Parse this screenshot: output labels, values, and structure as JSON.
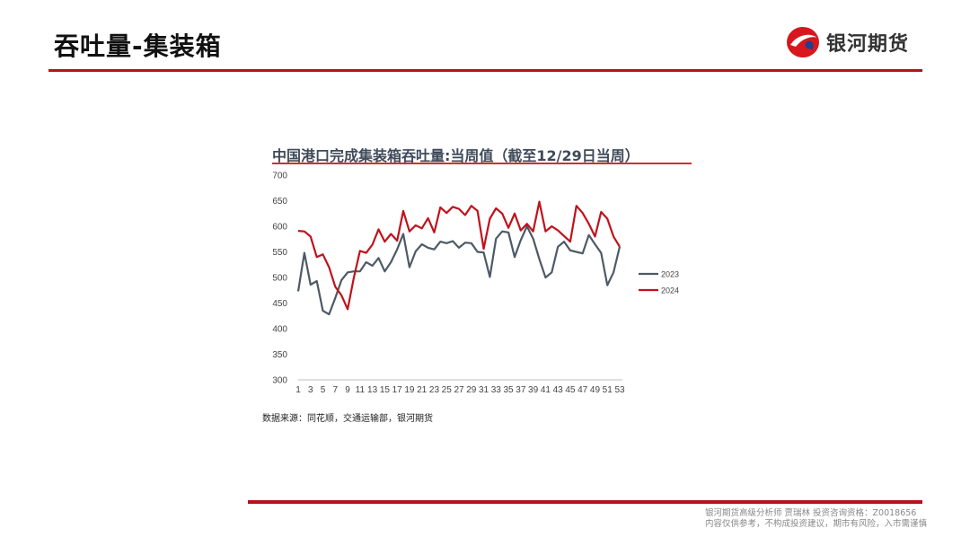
{
  "header": {
    "title": "吞吐量-集装箱",
    "logo_text": "银河期货",
    "logo_colors": {
      "red": "#d7161e",
      "blue": "#1f3f8f"
    }
  },
  "chart_title": "中国港口完成集装箱吞吐量:当周值（截至12/29日当周）",
  "source": "数据来源：同花顺，交通运输部，银河期货",
  "footer": {
    "line1": "银河期货高级分析师 贾瑞林 投资咨询资格：Z0018656",
    "line2": "内容仅供参考，不构成投资建议，期市有风险，入市需谨慎"
  },
  "chart_data": {
    "type": "line",
    "title": "中国港口完成集装箱吞吐量:当周值（截至12/29日当周）",
    "xlabel": "",
    "ylabel": "",
    "ylim": [
      300,
      700
    ],
    "yticks": [
      300,
      350,
      400,
      450,
      500,
      550,
      600,
      650,
      700
    ],
    "xticks": [
      "1",
      "3",
      "5",
      "7",
      "9",
      "11",
      "13",
      "15",
      "17",
      "19",
      "21",
      "23",
      "25",
      "27",
      "29",
      "31",
      "33",
      "35",
      "37",
      "39",
      "41",
      "43",
      "45",
      "47",
      "49",
      "51",
      "53"
    ],
    "x": [
      1,
      2,
      3,
      4,
      5,
      6,
      7,
      8,
      9,
      10,
      11,
      12,
      13,
      14,
      15,
      16,
      17,
      18,
      19,
      20,
      21,
      22,
      23,
      24,
      25,
      26,
      27,
      28,
      29,
      30,
      31,
      32,
      33,
      34,
      35,
      36,
      37,
      38,
      39,
      40,
      41,
      42,
      43,
      44,
      45,
      46,
      47,
      48,
      49,
      50,
      51,
      52,
      53
    ],
    "grid": false,
    "legend": "right",
    "series": [
      {
        "name": "2023",
        "color": "#4d5a66",
        "values": [
          473,
          548,
          486,
          493,
          435,
          428,
          460,
          495,
          510,
          512,
          512,
          530,
          523,
          538,
          512,
          530,
          555,
          585,
          520,
          551,
          565,
          558,
          555,
          570,
          567,
          571,
          558,
          568,
          567,
          550,
          549,
          501,
          576,
          590,
          588,
          540,
          573,
          600,
          576,
          536,
          500,
          510,
          560,
          570,
          553,
          550,
          547,
          583,
          565,
          548,
          485,
          510,
          560
        ]
      },
      {
        "name": "2024",
        "color": "#c0121c",
        "values": [
          591,
          590,
          580,
          540,
          545,
          520,
          482,
          465,
          438,
          500,
          552,
          548,
          564,
          594,
          570,
          585,
          572,
          630,
          590,
          602,
          596,
          616,
          588,
          637,
          626,
          638,
          634,
          622,
          640,
          630,
          556,
          615,
          635,
          625,
          597,
          625,
          592,
          605,
          590,
          648,
          590,
          600,
          592,
          581,
          570,
          640,
          626,
          605,
          580,
          628,
          615,
          580,
          560
        ]
      }
    ]
  }
}
